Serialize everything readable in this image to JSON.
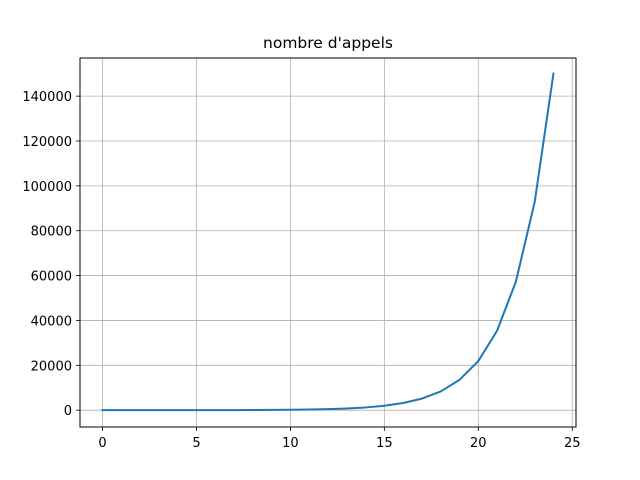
{
  "colors": {
    "series": "#1f77b4",
    "grid": "#b0b0b0",
    "axis": "#000000",
    "background": "#ffffff"
  },
  "chart_data": {
    "type": "line",
    "title": "nombre d'appels",
    "xlabel": "",
    "ylabel": "",
    "xlim": [
      -1.2,
      25.2
    ],
    "ylim": [
      -7500,
      157000
    ],
    "xticks": [
      0,
      5,
      10,
      15,
      20,
      25
    ],
    "yticks": [
      0,
      20000,
      40000,
      60000,
      80000,
      100000,
      120000,
      140000
    ],
    "grid": true,
    "legend": "none",
    "series": [
      {
        "x": [
          0,
          1,
          2,
          3,
          4,
          5,
          6,
          7,
          8,
          9,
          10,
          11,
          12,
          13,
          14,
          15,
          16,
          17,
          18,
          19,
          20,
          21,
          22,
          23,
          24
        ],
        "y": [
          1,
          1,
          3,
          5,
          9,
          15,
          25,
          41,
          67,
          109,
          177,
          287,
          465,
          753,
          1219,
          1973,
          3193,
          5167,
          8361,
          13529,
          21891,
          35421,
          57313,
          92735,
          150049
        ]
      }
    ]
  }
}
